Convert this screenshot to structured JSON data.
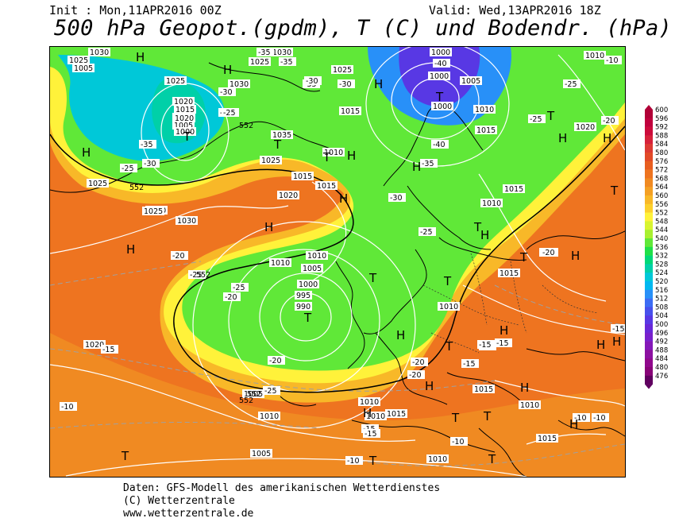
{
  "header": {
    "init": "Init : Mon,11APR2016 00Z",
    "valid": "Valid: Wed,13APR2016 18Z",
    "title": "500 hPa Geopot.(gpdm), T (C) und Bodendr. (hPa)"
  },
  "credits": {
    "line1": "Daten: GFS-Modell des amerikanischen Wetterdienstes",
    "line2": "(C) Wetterzentrale",
    "line3": "www.wetterzentrale.de"
  },
  "legend": {
    "values": [
      "600",
      "596",
      "592",
      "588",
      "584",
      "580",
      "576",
      "572",
      "568",
      "564",
      "560",
      "556",
      "552",
      "548",
      "544",
      "540",
      "536",
      "532",
      "528",
      "524",
      "520",
      "516",
      "512",
      "508",
      "504",
      "500",
      "496",
      "492",
      "488",
      "484",
      "480",
      "476"
    ],
    "colors": [
      "#b10037",
      "#c0003d",
      "#cc0b3b",
      "#d6213a",
      "#dc3a33",
      "#e24a28",
      "#e85e20",
      "#ee7420",
      "#f08a22",
      "#f4a024",
      "#f8b828",
      "#fcd02c",
      "#fff23a",
      "#d8f430",
      "#a8f030",
      "#60e838",
      "#20e048",
      "#00d878",
      "#00d0a8",
      "#00c8d8",
      "#00b8f0",
      "#2890f8",
      "#3c6cf4",
      "#4850ec",
      "#5838e4",
      "#6828d8",
      "#7820cc",
      "#8418b8",
      "#8c10a0",
      "#90088c",
      "#880478",
      "#600060"
    ]
  },
  "map": {
    "pressure_labels": [
      "1030",
      "1025",
      "1030",
      "1025",
      "1020",
      "1015",
      "1010",
      "1005",
      "1000",
      "1020",
      "1030",
      "1025",
      "1005",
      "1000",
      "1000",
      "1000",
      "1005",
      "1010",
      "1015",
      "1020",
      "1035",
      "1025",
      "1010",
      "1015",
      "1015",
      "1020",
      "1030",
      "1020",
      "1025",
      "1015",
      "1010",
      "1025",
      "1010",
      "1005",
      "1000",
      "995",
      "990",
      "1010",
      "1005",
      "1010",
      "1005",
      "1010",
      "1015",
      "1010",
      "1015",
      "1010",
      "1010",
      "1015",
      "1010",
      "1015",
      "1010",
      "1015",
      "1020",
      "1025"
    ],
    "temperature_labels": [
      "-35",
      "-35",
      "-30",
      "-35",
      "-30",
      "-25",
      "-35",
      "-30",
      "-25",
      "-25",
      "-30",
      "-30",
      "-40",
      "-40",
      "-35",
      "-30",
      "-25",
      "-25",
      "-25",
      "-20",
      "-20",
      "-25",
      "-25",
      "-20",
      "-25",
      "-20",
      "-20",
      "-15",
      "-20",
      "-15",
      "-15",
      "-15",
      "-10",
      "-15",
      "-15",
      "-10",
      "-10",
      "-10",
      "-10",
      "-20",
      "-15",
      "-15",
      "-10",
      "-20"
    ],
    "height_labels": [
      "552",
      "552",
      "552",
      "552",
      "552"
    ],
    "highs": [
      "H",
      "H",
      "H",
      "H",
      "H",
      "H",
      "H",
      "H",
      "H",
      "H",
      "H",
      "H",
      "H",
      "H",
      "H",
      "H",
      "H",
      "H",
      "H",
      "H",
      "H"
    ],
    "lows": [
      "T",
      "T",
      "T",
      "T",
      "T",
      "T",
      "T",
      "T",
      "T",
      "T",
      "T",
      "T",
      "T",
      "T",
      "T",
      "T",
      "T"
    ]
  }
}
